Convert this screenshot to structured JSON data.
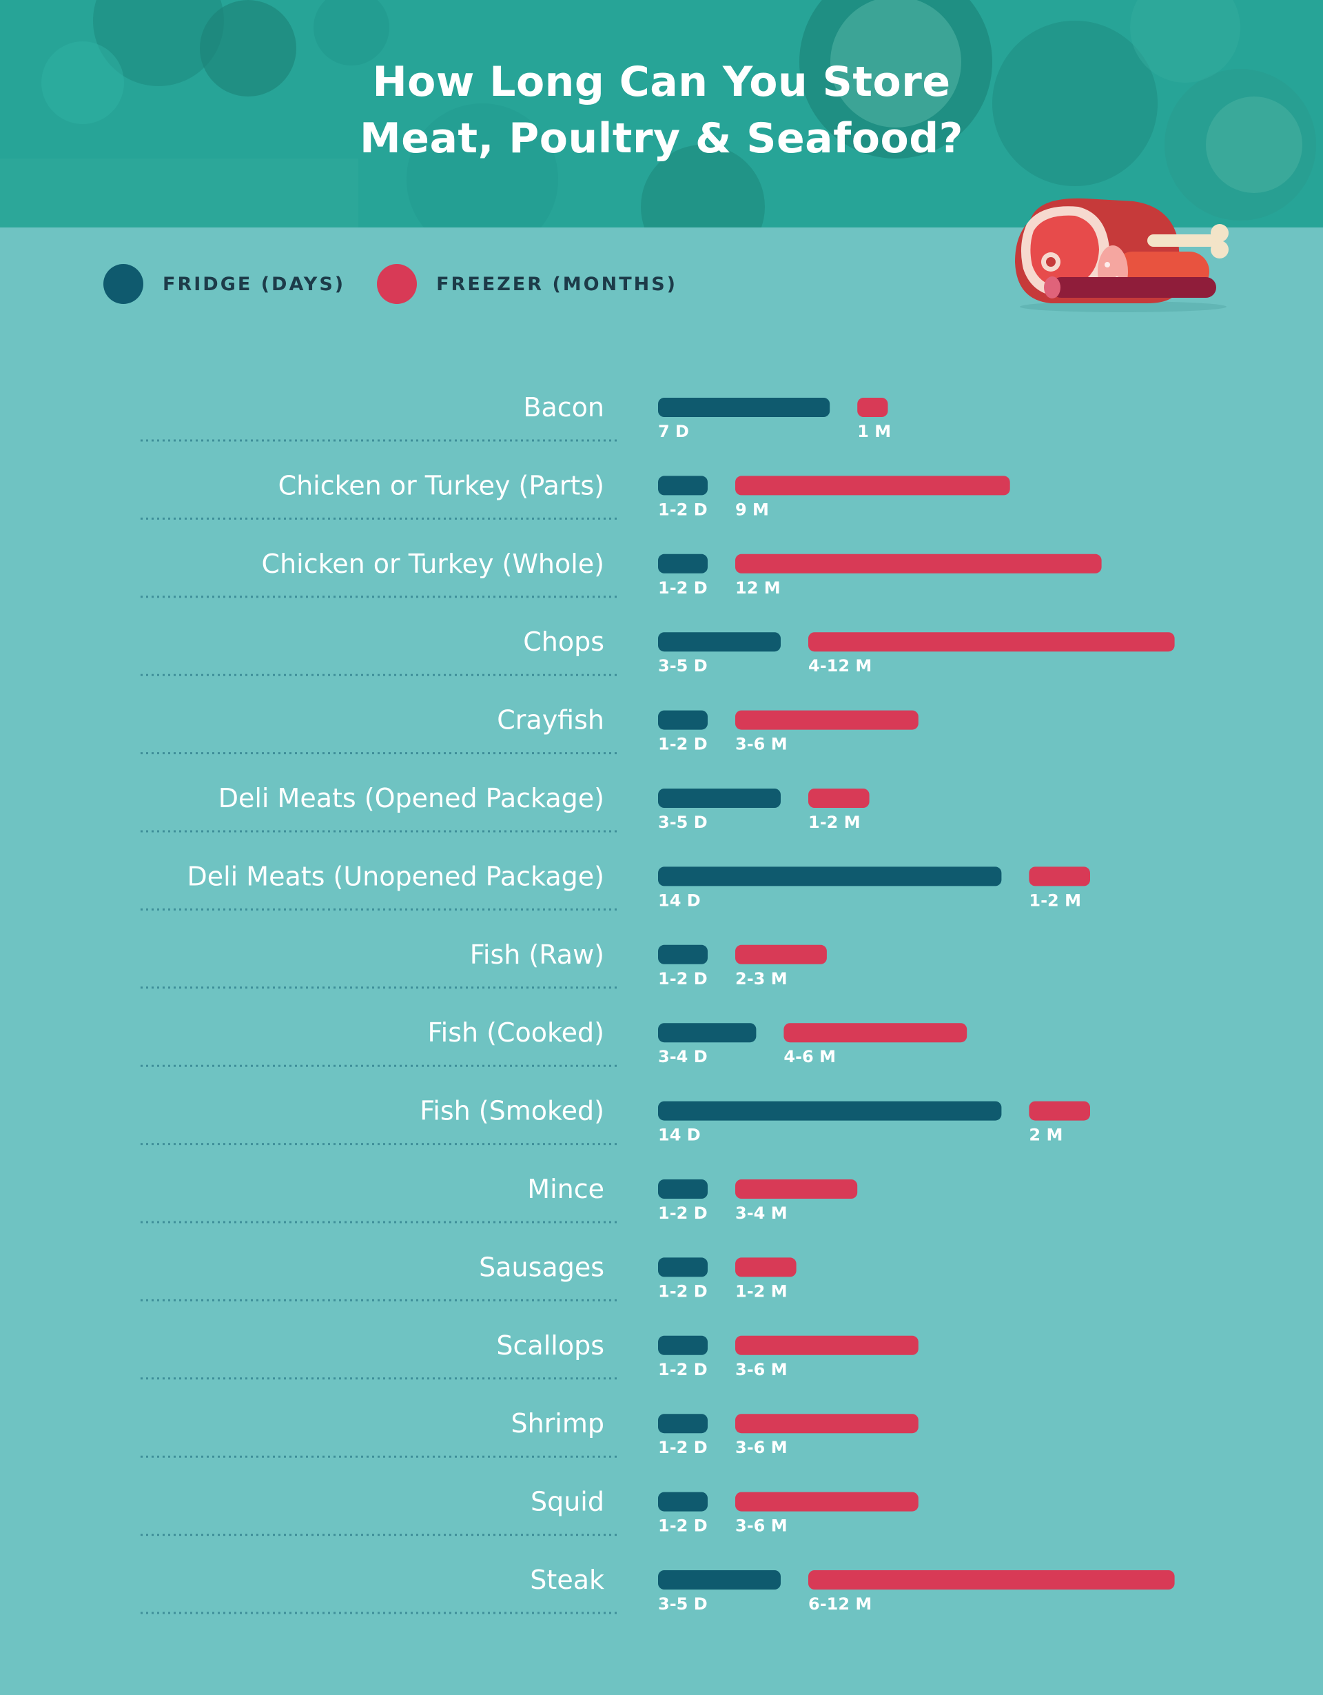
{
  "title": {
    "line1": "How Long Can You Store",
    "line2": "Meat, Poultry & Seafood?"
  },
  "legend": {
    "fridge": "FRIDGE (DAYS)",
    "freezer": "FREEZER (MONTHS)"
  },
  "colors": {
    "background": "#6fc3c2",
    "header": "#27a497",
    "fridge": "#0f5a6e",
    "freezer": "#d83a56",
    "label": "#ffffff",
    "legend_text": "#1d3b49"
  },
  "chart_data": {
    "type": "bar",
    "orientation": "horizontal",
    "categories": [
      "Bacon",
      "Chicken or Turkey (Parts)",
      "Chicken or Turkey (Whole)",
      "Chops",
      "Crayfish",
      "Deli Meats (Opened Package)",
      "Deli Meats (Unopened Package)",
      "Fish (Raw)",
      "Fish (Cooked)",
      "Fish (Smoked)",
      "Mince",
      "Sausages",
      "Scallops",
      "Shrimp",
      "Squid",
      "Steak"
    ],
    "series": [
      {
        "name": "FRIDGE (DAYS)",
        "unit": "days",
        "values": [
          7,
          2,
          2,
          5,
          2,
          5,
          14,
          2,
          4,
          14,
          2,
          2,
          2,
          2,
          2,
          5
        ],
        "labels": [
          "7 D",
          "1-2 D",
          "1-2 D",
          "3-5 D",
          "1-2 D",
          "3-5 D",
          "14 D",
          "1-2 D",
          "3-4 D",
          "14 D",
          "1-2 D",
          "1-2 D",
          "1-2 D",
          "1-2 D",
          "1-2 D",
          "3-5 D"
        ]
      },
      {
        "name": "FREEZER (MONTHS)",
        "unit": "months",
        "values": [
          1,
          9,
          12,
          12,
          6,
          2,
          2,
          3,
          6,
          2,
          4,
          2,
          6,
          6,
          6,
          12
        ],
        "labels": [
          "1 M",
          "9 M",
          "12 M",
          "4-12 M",
          "3-6 M",
          "1-2 M",
          "1-2 M",
          "2-3 M",
          "4-6 M",
          "2 M",
          "3-4 M",
          "1-2 M",
          "3-6 M",
          "3-6 M",
          "3-6 M",
          "6-12 M"
        ]
      }
    ],
    "xlabel": "",
    "ylabel": "",
    "grid": false,
    "legend_position": "top-left"
  }
}
